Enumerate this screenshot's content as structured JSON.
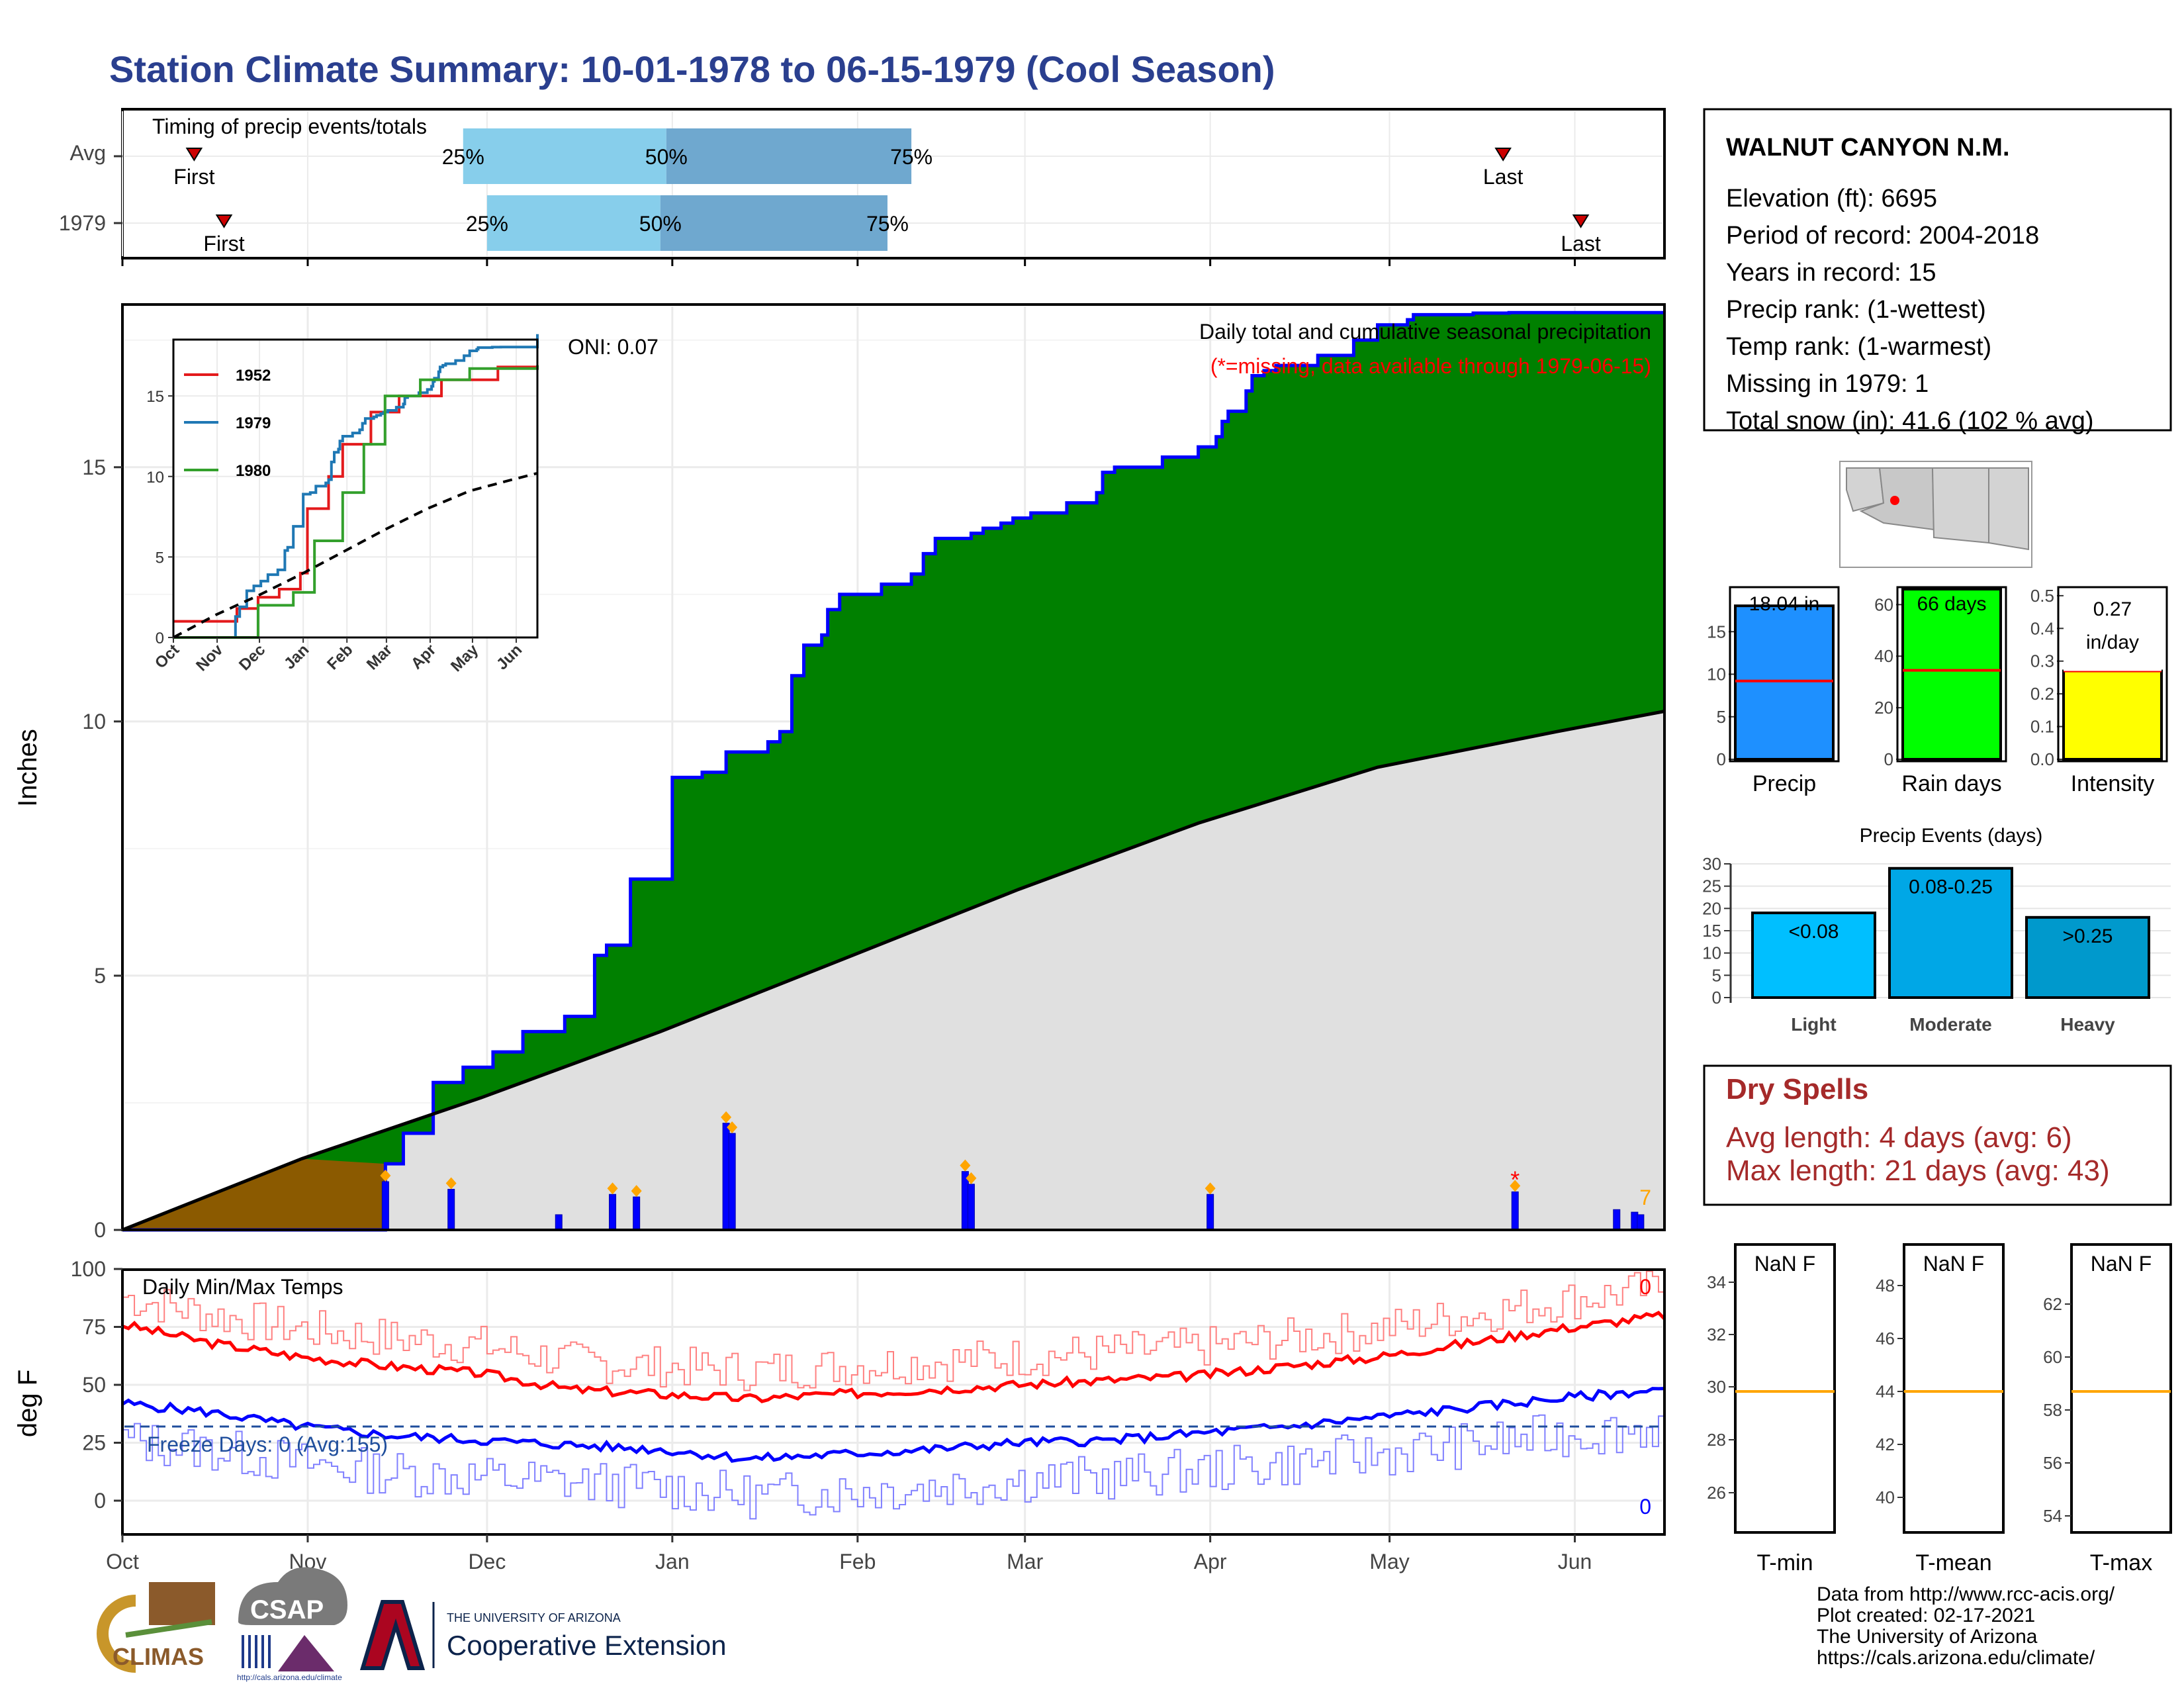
{
  "title": "Station Climate Summary: 10-01-1978 to 06-15-1979 (Cool Season)",
  "colors": {
    "title": "#2a3f8f",
    "green": "#008000",
    "brown": "#8b5a00",
    "avg_fill": "#e0e0e0",
    "blue": "#0000ff",
    "red": "#ff0000",
    "light_blue": "#87ceeb",
    "mid_blue": "#6fa8cf",
    "precip_bar": "#1e90ff",
    "rain_bar": "#00ff00",
    "intensity_bar": "#ffff00",
    "event_light": "#00bfff",
    "event_mod": "#00a7e6",
    "event_heavy": "#0099cc",
    "dry_spell": "#a52a2a",
    "freeze": "#1f4e9c",
    "orange": "#ffa500"
  },
  "station": {
    "name": "WALNUT CANYON N.M.",
    "lines": [
      "Elevation (ft): 6695",
      "Period of record: 2004-2018",
      "Years in record: 15",
      "Precip rank:  (1-wettest)",
      "Temp rank:  (1-warmest)",
      "Missing in 1979: 1",
      "Total snow (in): 41.6 (102 % avg)"
    ]
  },
  "timing": {
    "title": "Timing of precip events/totals",
    "rows": [
      "Avg",
      "1979"
    ],
    "first_label": "First",
    "last_label": "Last",
    "p25": "25%",
    "p50": "50%",
    "p75": "75%",
    "data": [
      {
        "row": "Avg",
        "first": 12,
        "p25": 57,
        "p50": 91,
        "p75": 132,
        "last": 231
      },
      {
        "row": "1979",
        "first": 17,
        "p25": 61,
        "p50": 90,
        "p75": 128,
        "last": 244
      }
    ]
  },
  "main": {
    "ylabel": "Inches",
    "desc": "Daily total and cumulative seasonal precipitation",
    "missing_note": "(*=missing, data available through 1979-06-15)",
    "oni": "ONI: 0.07",
    "count_label": "7",
    "yticks": [
      "0",
      "5",
      "10",
      "15"
    ]
  },
  "months": [
    "Oct",
    "Nov",
    "Dec",
    "Jan",
    "Feb",
    "Mar",
    "Apr",
    "May",
    "Jun"
  ],
  "inset": {
    "months": [
      "Oct",
      "Nov",
      "Dec",
      "Jan",
      "Feb",
      "Mar",
      "Apr",
      "May",
      "Jun"
    ],
    "yticks": [
      "0",
      "5",
      "10",
      "15"
    ],
    "legend": [
      {
        "name": "1952",
        "color": "#e31a1c"
      },
      {
        "name": "1979",
        "color": "#1f78b4"
      },
      {
        "name": "1980",
        "color": "#33a02c"
      }
    ]
  },
  "temps": {
    "title": "Daily Min/Max Temps",
    "ylabel": "deg F",
    "freeze": "Freeze Days: 0 (Avg:155)",
    "max_count": "0",
    "min_count": "0",
    "yticks": [
      "0",
      "25",
      "50",
      "75",
      "100"
    ]
  },
  "bars3": [
    {
      "label": "Precip",
      "value_text": "18.04 in",
      "ticks": [
        "0",
        "5",
        "10",
        "15"
      ]
    },
    {
      "label": "Rain days",
      "value_text": "66 days",
      "ticks": [
        "0",
        "20",
        "40",
        "60"
      ]
    },
    {
      "label": "Intensity",
      "value_text1": "0.27",
      "value_text2": "in/day",
      "ticks": [
        "0.0",
        "0.1",
        "0.2",
        "0.3",
        "0.4",
        "0.5"
      ]
    }
  ],
  "events": {
    "title": "Precip Events (days)",
    "ticks": [
      "0",
      "5",
      "10",
      "15",
      "20",
      "25",
      "30"
    ],
    "bars": [
      {
        "name": "Light",
        "label": "<0.08",
        "value": 19
      },
      {
        "name": "Moderate",
        "label": "0.08-0.25",
        "value": 29
      },
      {
        "name": "Heavy",
        "label": ">0.25",
        "value": 18
      }
    ]
  },
  "dry": {
    "title": "Dry Spells",
    "avg": "Avg length: 4 days (avg: 6)",
    "max": "Max length: 21 days (avg: 43)"
  },
  "tbox": [
    {
      "label": "T-min",
      "value_text": "NaN F",
      "ticks": [
        "26",
        "28",
        "30",
        "32",
        "34"
      ]
    },
    {
      "label": "T-mean",
      "value_text": "NaN F",
      "ticks": [
        "40",
        "42",
        "44",
        "46",
        "48"
      ]
    },
    {
      "label": "T-max",
      "value_text": "NaN F",
      "ticks": [
        "54",
        "56",
        "58",
        "60",
        "62"
      ]
    }
  ],
  "credits": [
    "Data from http://www.rcc-acis.org/",
    "Plot created: 02-17-2021",
    "The University of Arizona",
    "https://cals.arizona.edu/climate/"
  ],
  "logos": {
    "climas": "CLIMAS",
    "csap": "CSAP",
    "csap_url": "http://cals.arizona.edu/climate",
    "ua_line1": "THE UNIVERSITY OF ARIZONA",
    "ua_line2": "Cooperative Extension"
  },
  "chart_data": {
    "type": "area",
    "title": "Daily total and cumulative seasonal precipitation",
    "ylabel": "Inches",
    "ylim": [
      0,
      18.2
    ],
    "x_range_days": [
      0,
      258
    ],
    "cumulative_1979": {
      "days": [
        0,
        44,
        47,
        52,
        57,
        62,
        67,
        74,
        79,
        81,
        85,
        92,
        94,
        97,
        101,
        108,
        110,
        112,
        114,
        117,
        118,
        120,
        127,
        132,
        134,
        136,
        142,
        144,
        147,
        149,
        152,
        158,
        163,
        164,
        166,
        174,
        180,
        183,
        184,
        185,
        188,
        189,
        191,
        193,
        200,
        206,
        210,
        215,
        216,
        218,
        226,
        232,
        235,
        236,
        240,
        243,
        250,
        258
      ],
      "values": [
        0.0,
        1.3,
        1.9,
        2.9,
        3.2,
        3.5,
        3.9,
        4.2,
        5.4,
        5.6,
        6.9,
        8.9,
        8.9,
        9.0,
        9.4,
        9.6,
        9.8,
        10.9,
        11.5,
        11.7,
        12.2,
        12.5,
        12.7,
        12.9,
        13.3,
        13.6,
        13.7,
        13.8,
        13.9,
        14.0,
        14.1,
        14.3,
        14.5,
        14.9,
        15.0,
        15.2,
        15.4,
        15.6,
        15.9,
        16.1,
        16.5,
        16.8,
        16.9,
        17.0,
        17.2,
        17.5,
        17.8,
        17.9,
        18.0,
        18.0,
        18.03,
        18.04,
        18.04,
        18.04,
        18.04,
        18.04,
        18.04,
        18.04
      ]
    },
    "cumulative_avg": {
      "days": [
        0,
        30,
        60,
        90,
        120,
        150,
        180,
        210,
        240,
        258
      ],
      "values": [
        0.0,
        1.4,
        2.6,
        3.9,
        5.3,
        6.7,
        8.0,
        9.1,
        9.8,
        10.2
      ]
    },
    "daily_bars": [
      {
        "day": 44,
        "value": 0.95
      },
      {
        "day": 55,
        "value": 0.8
      },
      {
        "day": 73,
        "value": 0.3
      },
      {
        "day": 82,
        "value": 0.7
      },
      {
        "day": 86,
        "value": 0.65
      },
      {
        "day": 101,
        "value": 2.1
      },
      {
        "day": 102,
        "value": 1.9
      },
      {
        "day": 141,
        "value": 1.15
      },
      {
        "day": 142,
        "value": 0.9
      },
      {
        "day": 182,
        "value": 0.7
      },
      {
        "day": 233,
        "value": 0.75
      },
      {
        "day": 250,
        "value": 0.4
      },
      {
        "day": 253,
        "value": 0.35
      },
      {
        "day": 254,
        "value": 0.3
      }
    ],
    "temps": {
      "max_avg": {
        "days": [
          0,
          15,
          30,
          45,
          60,
          75,
          90,
          105,
          120,
          135,
          150,
          165,
          180,
          195,
          210,
          225,
          240,
          258
        ],
        "values": [
          76,
          68,
          62,
          58,
          55,
          48,
          46,
          44,
          46,
          48,
          50,
          52,
          54,
          58,
          62,
          68,
          74,
          80
        ]
      },
      "min_avg": {
        "days": [
          0,
          15,
          30,
          45,
          60,
          75,
          90,
          105,
          120,
          135,
          150,
          165,
          180,
          195,
          210,
          225,
          240,
          258
        ],
        "values": [
          42,
          38,
          32,
          28,
          26,
          24,
          22,
          18,
          20,
          22,
          25,
          26,
          29,
          32,
          36,
          40,
          44,
          48
        ]
      }
    }
  }
}
